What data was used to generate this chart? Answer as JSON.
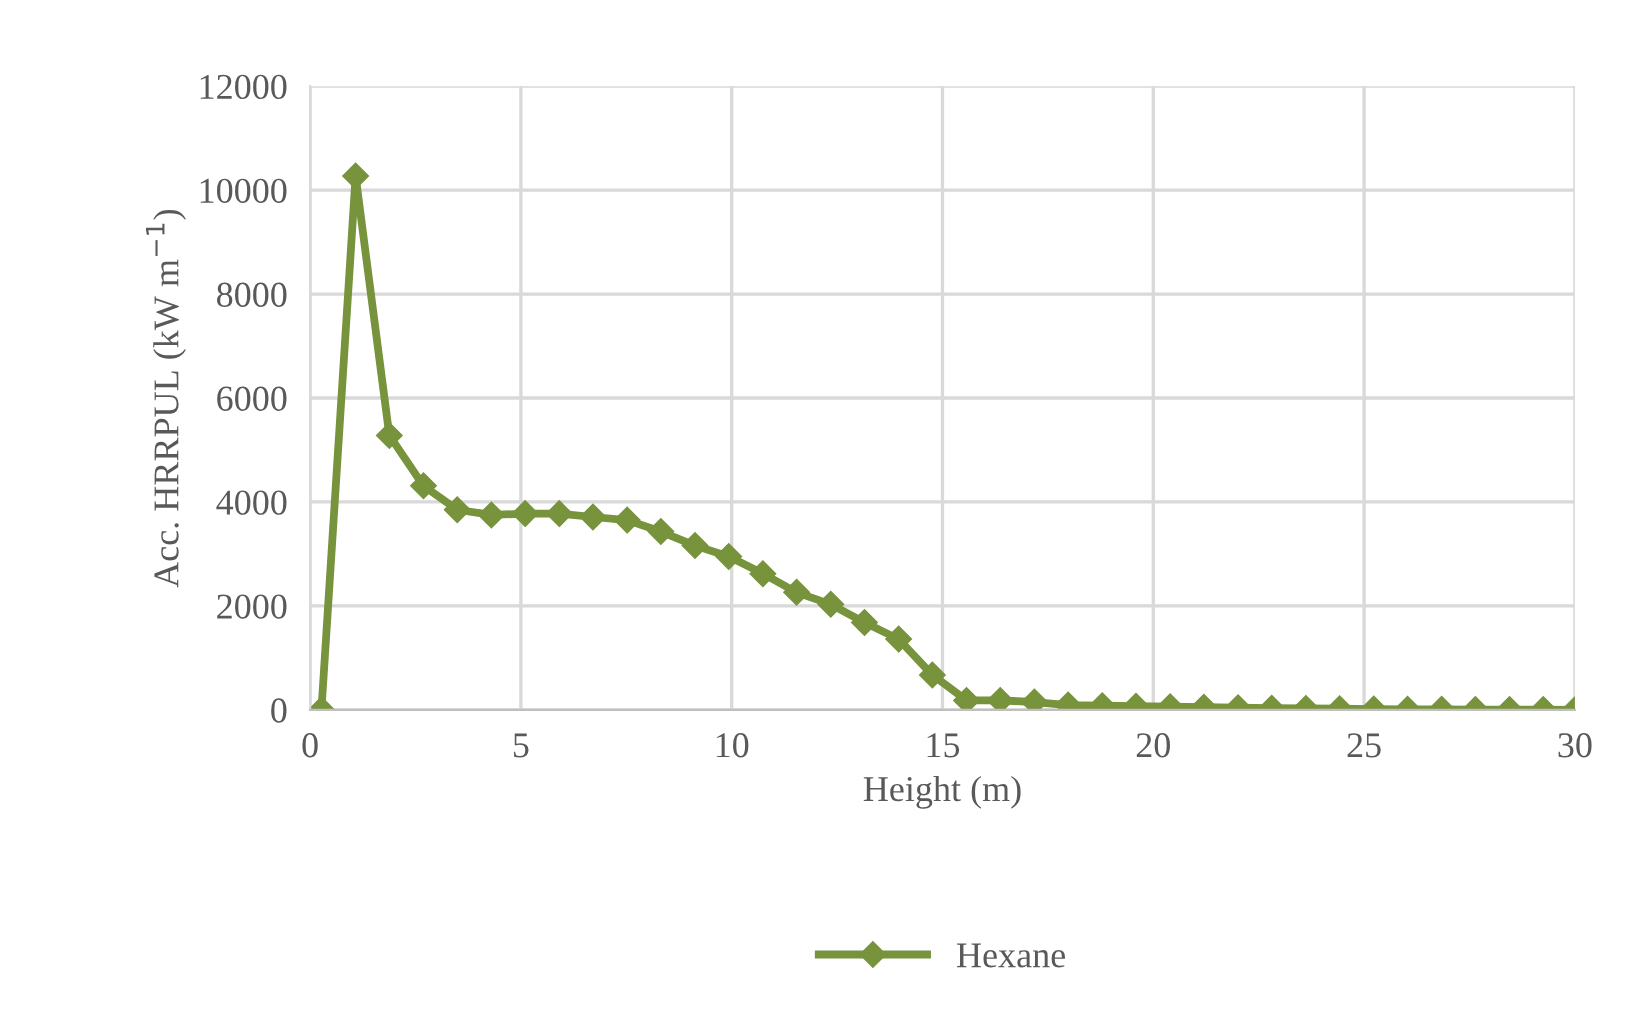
{
  "chart_data": {
    "type": "line",
    "xlabel": "Height (m)",
    "ylabel": "Acc. HRRPUL (kW m$^{−1}$)",
    "x": [
      0.27,
      1.08,
      1.88,
      2.69,
      3.49,
      4.3,
      5.1,
      5.91,
      6.71,
      7.52,
      8.32,
      9.13,
      9.93,
      10.74,
      11.54,
      12.35,
      13.15,
      13.96,
      14.76,
      15.57,
      16.37,
      17.18,
      17.98,
      18.79,
      19.59,
      20.4,
      21.2,
      22.01,
      22.81,
      23.62,
      24.42,
      25.23,
      26.03,
      26.84,
      27.64,
      28.45,
      29.25,
      30.0
    ],
    "series": [
      {
        "name": "Hexane",
        "color": "#77933c",
        "values": [
          0,
          10270,
          5280,
          4310,
          3850,
          3750,
          3775,
          3775,
          3710,
          3650,
          3430,
          3160,
          2950,
          2620,
          2260,
          2030,
          1680,
          1360,
          670,
          180,
          180,
          150,
          90,
          80,
          70,
          60,
          50,
          40,
          30,
          25,
          20,
          15,
          10,
          10,
          5,
          5,
          5,
          0
        ]
      }
    ],
    "xlim": [
      0,
      30
    ],
    "xticks": [
      0,
      5,
      10,
      15,
      20,
      25,
      30
    ],
    "ylim": [
      0,
      12000
    ],
    "yticks": [
      0,
      2000,
      4000,
      6000,
      8000,
      10000,
      12000
    ],
    "grid": true,
    "legend": "bottom",
    "marker": "diamond",
    "line_style": "solid"
  }
}
